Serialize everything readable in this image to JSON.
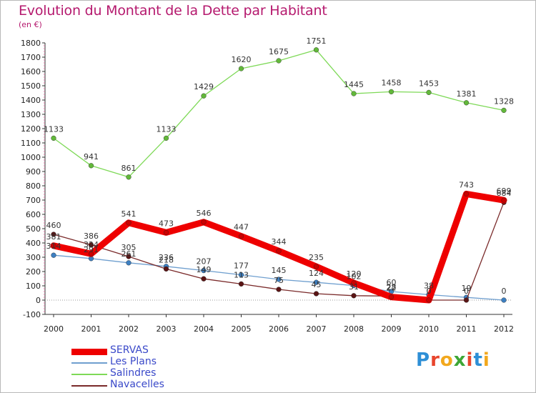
{
  "title": "Evolution du Montant de la Dette par Habitant",
  "unit": "(en €)",
  "brand": "Proxiti",
  "chart_data": {
    "type": "line",
    "x": [
      "2000",
      "2001",
      "2002",
      "2003",
      "2004",
      "2005",
      "2006",
      "2007",
      "2008",
      "2009",
      "2010",
      "2011",
      "2012"
    ],
    "ylim": [
      -100,
      1800
    ],
    "yticks": [
      -100,
      0,
      100,
      200,
      300,
      400,
      500,
      600,
      700,
      800,
      900,
      1000,
      1100,
      1200,
      1300,
      1400,
      1500,
      1600,
      1700,
      1800
    ],
    "grid": false,
    "legend_position": "bottom-left",
    "series": [
      {
        "name": "SERVAS",
        "color": "#ee0000",
        "width": 9,
        "marker": "#cc0000",
        "values": [
          381,
          324,
          541,
          473,
          546,
          447,
          344,
          235,
          120,
          22,
          0,
          743,
          699
        ]
      },
      {
        "name": "Les Plans",
        "color": "#6f9fcf",
        "width": 1.3,
        "marker": "#3d7fc1",
        "values": [
          314,
          291,
          261,
          236,
          207,
          177,
          145,
          124,
          102,
          60,
          38,
          19,
          0
        ]
      },
      {
        "name": "Salindres",
        "color": "#7ed957",
        "width": 1.3,
        "marker": "#62b83a",
        "values": [
          1133,
          941,
          861,
          1133,
          1429,
          1620,
          1675,
          1751,
          1445,
          1458,
          1453,
          1381,
          1328
        ]
      },
      {
        "name": "Navacelles",
        "color": "#7a2a2a",
        "width": 1.3,
        "marker": "#5a1414",
        "values": [
          460,
          386,
          305,
          218,
          149,
          113,
          75,
          45,
          31,
          28,
          0,
          0,
          684
        ]
      }
    ]
  }
}
